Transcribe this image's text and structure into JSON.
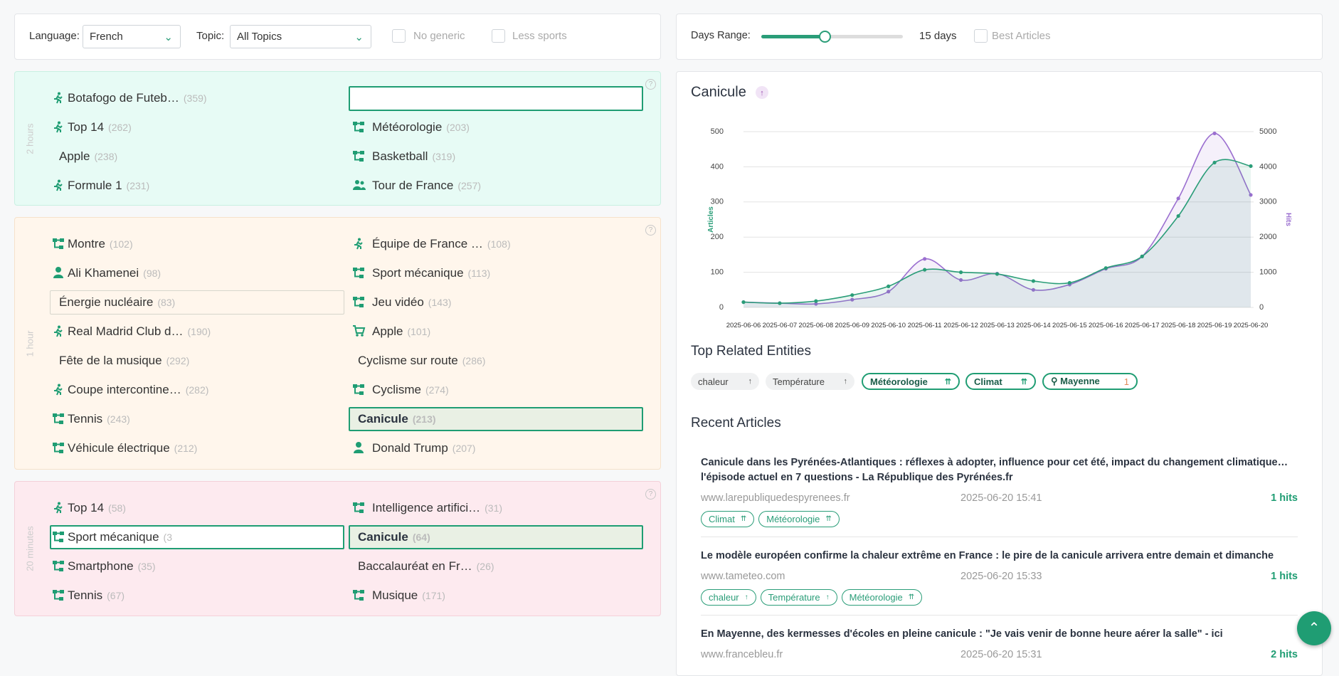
{
  "filters": {
    "language_label": "Language:",
    "language": "French",
    "topic_label": "Topic:",
    "topic": "All Topics",
    "no_generic": "No generic",
    "less_sports": "Less sports"
  },
  "range": {
    "label": "Days Range:",
    "days": "15 days",
    "best": "Best Articles"
  },
  "groups": [
    {
      "period": "2 hours",
      "left": [
        {
          "name": "Botafogo de Futeb…",
          "count": "(359)",
          "icon": "run"
        },
        {
          "name": "Top 14",
          "count": "(262)",
          "icon": "run"
        },
        {
          "name": "Apple",
          "count": "(238)",
          "icon": "none"
        },
        {
          "name": "Formule 1",
          "count": "(231)",
          "icon": "run"
        }
      ],
      "right": [
        {
          "name": "Météorologie",
          "count": "(203)",
          "icon": "topic"
        },
        {
          "name": "Basketball",
          "count": "(319)",
          "icon": "topic"
        },
        {
          "name": "Tour de France",
          "count": "(257)",
          "icon": "people"
        }
      ]
    },
    {
      "period": "1 hour",
      "left": [
        {
          "name": "Montre",
          "count": "(102)",
          "icon": "topic"
        },
        {
          "name": "Ali Khamenei",
          "count": "(98)",
          "icon": "person"
        },
        {
          "name": "Énergie nucléaire",
          "count": "(83)",
          "icon": "none",
          "state": "outlined"
        },
        {
          "name": "Real Madrid Club d…",
          "count": "(190)",
          "icon": "run"
        },
        {
          "name": "Fête de la musique",
          "count": "(292)",
          "icon": "none"
        },
        {
          "name": "Coupe intercontine…",
          "count": "(282)",
          "icon": "run"
        },
        {
          "name": "Tennis",
          "count": "(243)",
          "icon": "topic"
        },
        {
          "name": "Véhicule électrique",
          "count": "(212)",
          "icon": "topic"
        }
      ],
      "right": [
        {
          "name": "Équipe de France …",
          "count": "(108)",
          "icon": "run"
        },
        {
          "name": "Sport mécanique",
          "count": "(113)",
          "icon": "topic"
        },
        {
          "name": "Jeu vidéo",
          "count": "(143)",
          "icon": "topic"
        },
        {
          "name": "Apple",
          "count": "(101)",
          "icon": "cart"
        },
        {
          "name": "Cyclisme sur route",
          "count": "(286)",
          "icon": "none"
        },
        {
          "name": "Cyclisme",
          "count": "(274)",
          "icon": "topic"
        },
        {
          "name": "Canicule",
          "count": "(213)",
          "icon": "none",
          "state": "selected"
        },
        {
          "name": "Donald Trump",
          "count": "(207)",
          "icon": "person"
        }
      ]
    },
    {
      "period": "20 minutes",
      "left": [
        {
          "name": "Top 14",
          "count": "(58)",
          "icon": "run"
        },
        {
          "name": "Sport mécanique",
          "count": "(3",
          "icon": "topic",
          "state": "focus"
        },
        {
          "name": "Smartphone",
          "count": "(35)",
          "icon": "topic"
        },
        {
          "name": "Tennis",
          "count": "(67)",
          "icon": "topic"
        }
      ],
      "right": [
        {
          "name": "Intelligence artifici…",
          "count": "(31)",
          "icon": "topic"
        },
        {
          "name": "Canicule",
          "count": "(64)",
          "icon": "none",
          "state": "selected"
        },
        {
          "name": "Baccalauréat en Fr…",
          "count": "(26)",
          "icon": "none"
        },
        {
          "name": "Musique",
          "count": "(171)",
          "icon": "topic"
        }
      ]
    }
  ],
  "chart": {
    "type": "line",
    "title": "Canicule",
    "ylabel": "Articles",
    "y2label": "Hits",
    "categories": [
      "2025-06-06",
      "2025-06-07",
      "2025-06-08",
      "2025-06-09",
      "2025-06-10",
      "2025-06-11",
      "2025-06-12",
      "2025-06-13",
      "2025-06-14",
      "2025-06-15",
      "2025-06-16",
      "2025-06-17",
      "2025-06-18",
      "2025-06-19",
      "2025-06-20"
    ],
    "series": [
      {
        "name": "Articles",
        "color": "#2a9d78",
        "values": [
          15,
          12,
          18,
          35,
          60,
          107,
          100,
          95,
          75,
          70,
          112,
          145,
          260,
          412,
          402
        ]
      },
      {
        "name": "Hits",
        "color": "#9b6fd0",
        "axis": "y2",
        "values": [
          150,
          120,
          100,
          220,
          450,
          1380,
          780,
          960,
          500,
          650,
          1100,
          1450,
          3100,
          4950,
          3200
        ]
      }
    ],
    "ylim": [
      0,
      500
    ],
    "yticks": [
      0,
      100,
      200,
      300,
      400,
      500
    ],
    "y2lim": [
      0,
      5000
    ],
    "y2ticks": [
      0,
      1000,
      2000,
      3000,
      4000,
      5000
    ],
    "grid": true
  },
  "entities": {
    "title": "Top Related Entities",
    "items": [
      {
        "name": "chaleur",
        "style": "gray"
      },
      {
        "name": "Température",
        "style": "gray"
      },
      {
        "name": "Météorologie",
        "style": "green"
      },
      {
        "name": "Climat",
        "style": "green"
      },
      {
        "name": "Mayenne",
        "style": "green",
        "count": "1"
      }
    ]
  },
  "articles": {
    "title": "Recent Articles",
    "items": [
      {
        "title": "Canicule dans les Pyrénées-Atlantiques : réflexes à adopter, influence pour cet été, impact du changement climatique… l'épisode actuel en 7 questions - La République des Pyrénées.fr",
        "source": "www.larepubliquedespyrenees.fr",
        "date": "2025-06-20 15:41",
        "hits": "1 hits",
        "tags": [
          {
            "name": "Climat"
          },
          {
            "name": "Météorologie"
          }
        ]
      },
      {
        "title": "Le modèle européen confirme la chaleur extrême en France : le pire de la canicule arrivera entre demain et dimanche",
        "source": "www.tameteo.com",
        "date": "2025-06-20 15:33",
        "hits": "1 hits",
        "tags": [
          {
            "name": "chaleur"
          },
          {
            "name": "Température"
          },
          {
            "name": "Météorologie"
          }
        ]
      },
      {
        "title": "En Mayenne, des kermesses d'écoles en pleine canicule : \"Je vais venir de bonne heure aérer la salle\" - ici",
        "source": "www.francebleu.fr",
        "date": "2025-06-20 15:31",
        "hits": "2 hits",
        "tags": []
      }
    ]
  }
}
